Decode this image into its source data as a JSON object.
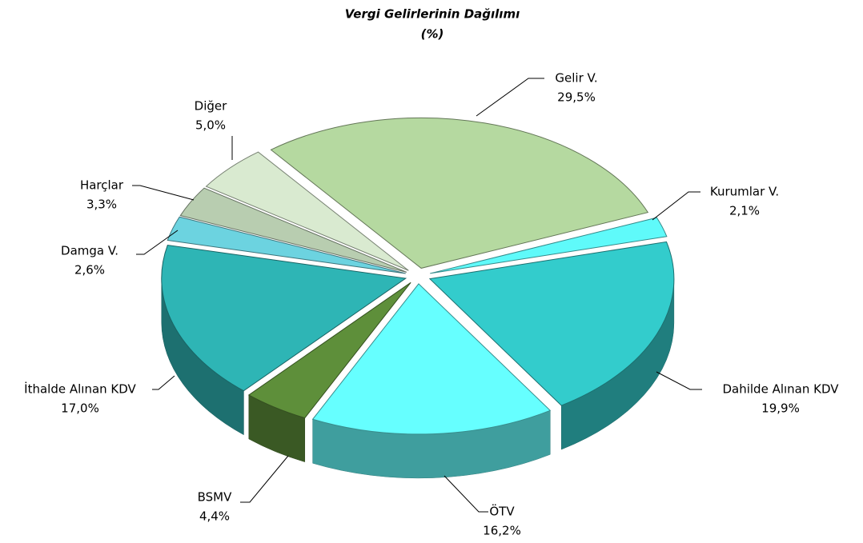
{
  "chart_data": {
    "type": "pie",
    "title": "Vergi Gelirlerinin Dağılımı",
    "subtitle": "(%)",
    "categories": [
      "Gelir V.",
      "Kurumlar V.",
      "Dahilde Alınan KDV",
      "ÖTV",
      "BSMV",
      "İthalde Alınan KDV",
      "Damga V.",
      "Harçlar",
      "Diğer"
    ],
    "values": [
      29.5,
      2.1,
      19.9,
      16.2,
      4.4,
      17.0,
      2.6,
      3.3,
      5.0
    ],
    "value_labels": [
      "29,5%",
      "2,1%",
      "19,9%",
      "16,2%",
      "4,4%",
      "17,0%",
      "2,6%",
      "3,3%",
      "5,0%"
    ],
    "colors": [
      "#b5d9a0",
      "#5ffafa",
      "#33cccc",
      "#66ffff",
      "#5e8f3a",
      "#2eb5b5",
      "#6cd3e0",
      "#b8cdb0",
      "#d9ead0"
    ]
  }
}
